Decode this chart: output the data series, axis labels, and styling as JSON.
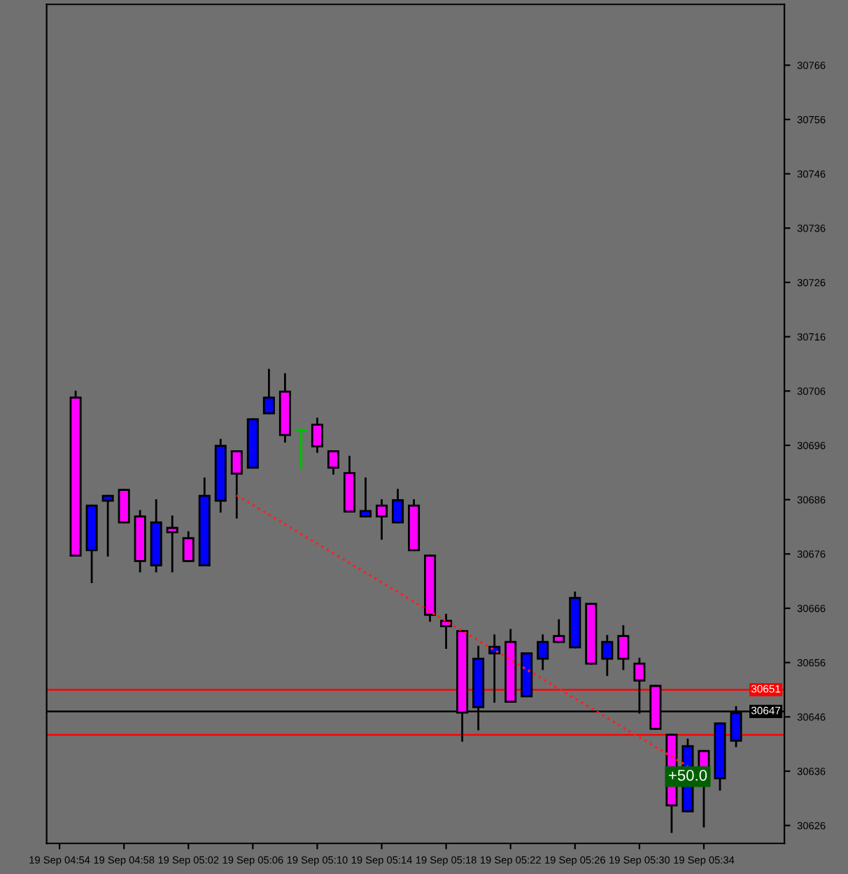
{
  "chart_data": {
    "type": "candlestick",
    "categories": [
      "19 Sep 04:54",
      null,
      null,
      null,
      "19 Sep 04:58",
      null,
      null,
      null,
      "19 Sep 05:02",
      null,
      null,
      null,
      "19 Sep 05:06",
      null,
      null,
      null,
      "19 Sep 05:10",
      null,
      null,
      null,
      "19 Sep 05:14",
      null,
      null,
      null,
      "19 Sep 05:18",
      null,
      null,
      null,
      "19 Sep 05:22",
      null,
      null,
      null,
      "19 Sep 05:26",
      null,
      null,
      null,
      "19 Sep 05:30",
      null,
      null,
      null,
      "19 Sep 05:34",
      null,
      null
    ],
    "ohlc": [
      null,
      [
        30704.8,
        30705.9,
        30675.7,
        30675.7
      ],
      [
        30676.7,
        30684.9,
        30670.8,
        30684.9
      ],
      [
        30685.8,
        30686.7,
        30675.7,
        30686.7
      ],
      [
        30687.8,
        30687.8,
        30681.8,
        30681.8
      ],
      [
        30682.9,
        30683.9,
        30672.8,
        30674.7
      ],
      [
        30673.9,
        30685.9,
        30672.8,
        30681.8
      ],
      [
        30680.8,
        30682.9,
        30672.8,
        30680.0
      ],
      [
        30678.9,
        30680.0,
        30674.7,
        30674.7
      ],
      [
        30673.9,
        30689.9,
        30673.9,
        30686.7
      ],
      [
        30685.8,
        30697.0,
        30683.8,
        30695.9
      ],
      [
        30694.9,
        30694.9,
        30682.7,
        30690.8
      ],
      [
        30691.9,
        30700.8,
        30691.9,
        30700.8
      ],
      [
        30701.9,
        30709.9,
        30701.9,
        30704.8
      ],
      [
        30705.9,
        30709.1,
        30696.7,
        30697.9
      ],
      [
        30698.8,
        30698.8,
        30691.9,
        30698.8
      ],
      [
        30699.8,
        30700.9,
        30694.8,
        30695.8
      ],
      [
        30694.9,
        30694.9,
        30690.8,
        30691.9
      ],
      [
        30690.9,
        30693.9,
        30683.8,
        30683.8
      ],
      [
        30682.9,
        30689.9,
        30682.9,
        30683.9
      ],
      [
        30684.9,
        30685.9,
        30678.8,
        30682.9
      ],
      [
        30681.8,
        30687.8,
        30681.8,
        30685.9
      ],
      [
        30684.9,
        30685.9,
        30676.7,
        30676.7
      ],
      [
        30675.7,
        30675.7,
        30663.7,
        30664.8
      ],
      [
        30663.7,
        30664.8,
        30658.7,
        30662.7
      ],
      [
        30661.8,
        30661.8,
        30641.6,
        30646.8
      ],
      [
        30647.8,
        30658.9,
        30643.7,
        30656.7
      ],
      [
        30657.7,
        30661.0,
        30648.8,
        30658.9
      ],
      [
        30659.8,
        30662.0,
        30648.8,
        30648.8
      ],
      [
        30649.8,
        30657.7,
        30649.8,
        30657.7
      ],
      [
        30656.7,
        30661.0,
        30654.8,
        30659.8
      ],
      [
        30660.9,
        30663.8,
        30659.8,
        30659.8
      ],
      [
        30658.8,
        30668.9,
        30658.8,
        30667.9
      ],
      [
        30666.8,
        30666.8,
        30655.8,
        30655.8
      ],
      [
        30656.7,
        30660.9,
        30653.7,
        30659.8
      ],
      [
        30660.9,
        30662.7,
        30654.8,
        30656.7
      ],
      [
        30655.8,
        30656.7,
        30646.8,
        30652.7
      ],
      [
        30651.7,
        30651.7,
        30643.8,
        30643.8
      ],
      [
        30642.7,
        30642.7,
        30624.8,
        30629.7
      ],
      [
        30628.6,
        30641.8,
        30628.6,
        30640.6
      ],
      [
        30639.7,
        30639.7,
        30625.8,
        30633.6
      ],
      [
        30634.7,
        30644.8,
        30632.6,
        30644.8
      ],
      [
        30641.6,
        30647.8,
        30640.6,
        30646.7
      ]
    ],
    "colors": [
      null,
      "#ff00ff",
      "#0000ff",
      "#0000ff",
      "#ff00ff",
      "#ff00ff",
      "#0000ff",
      "#ff00ff",
      "#ff00ff",
      "#0000ff",
      "#0000ff",
      "#ff00ff",
      "#0000ff",
      "#0000ff",
      "#ff00ff",
      "#00c000",
      "#ff00ff",
      "#ff00ff",
      "#ff00ff",
      "#0000ff",
      "#ff00ff",
      "#0000ff",
      "#ff00ff",
      "#ff00ff",
      "#ff00ff",
      "#ff00ff",
      "#0000ff",
      "#0000ff",
      "#ff00ff",
      "#0000ff",
      "#0000ff",
      "#ff00ff",
      "#0000ff",
      "#ff00ff",
      "#0000ff",
      "#ff00ff",
      "#ff00ff",
      "#ff00ff",
      "#ff00ff",
      "#0000ff",
      "#ff00ff",
      "#0000ff",
      "#0000ff"
    ],
    "series": [
      {
        "type": "line",
        "color": "#ff2020",
        "line_style": "dotted",
        "values": [
          null,
          null,
          null,
          null,
          null,
          null,
          null,
          null,
          null,
          null,
          null,
          30686.8,
          null,
          null,
          null,
          null,
          null,
          null,
          null,
          null,
          null,
          null,
          null,
          null,
          null,
          null,
          null,
          null,
          null,
          null,
          null,
          null,
          null,
          null,
          null,
          null,
          null,
          null,
          null,
          30636.9,
          null,
          null,
          null
        ]
      }
    ],
    "ref_lines": [
      {
        "axis": "y",
        "value": 30651,
        "label": "30651",
        "color": "#ff0000"
      },
      {
        "axis": "y",
        "value": 30647,
        "label": "30647",
        "color": "#000000"
      },
      {
        "axis": "y",
        "value": 30642.7,
        "label": null,
        "color": "#ff0000"
      }
    ],
    "annotations": [
      {
        "text": "+50.0",
        "y": 30635
      }
    ],
    "ylim": [
      30622.7,
      30777.2
    ],
    "yticks": [
      30626,
      30636,
      30646,
      30656,
      30666,
      30676,
      30686,
      30696,
      30706,
      30716,
      30726,
      30736,
      30746,
      30756,
      30766
    ],
    "grid": false,
    "legend": false
  }
}
